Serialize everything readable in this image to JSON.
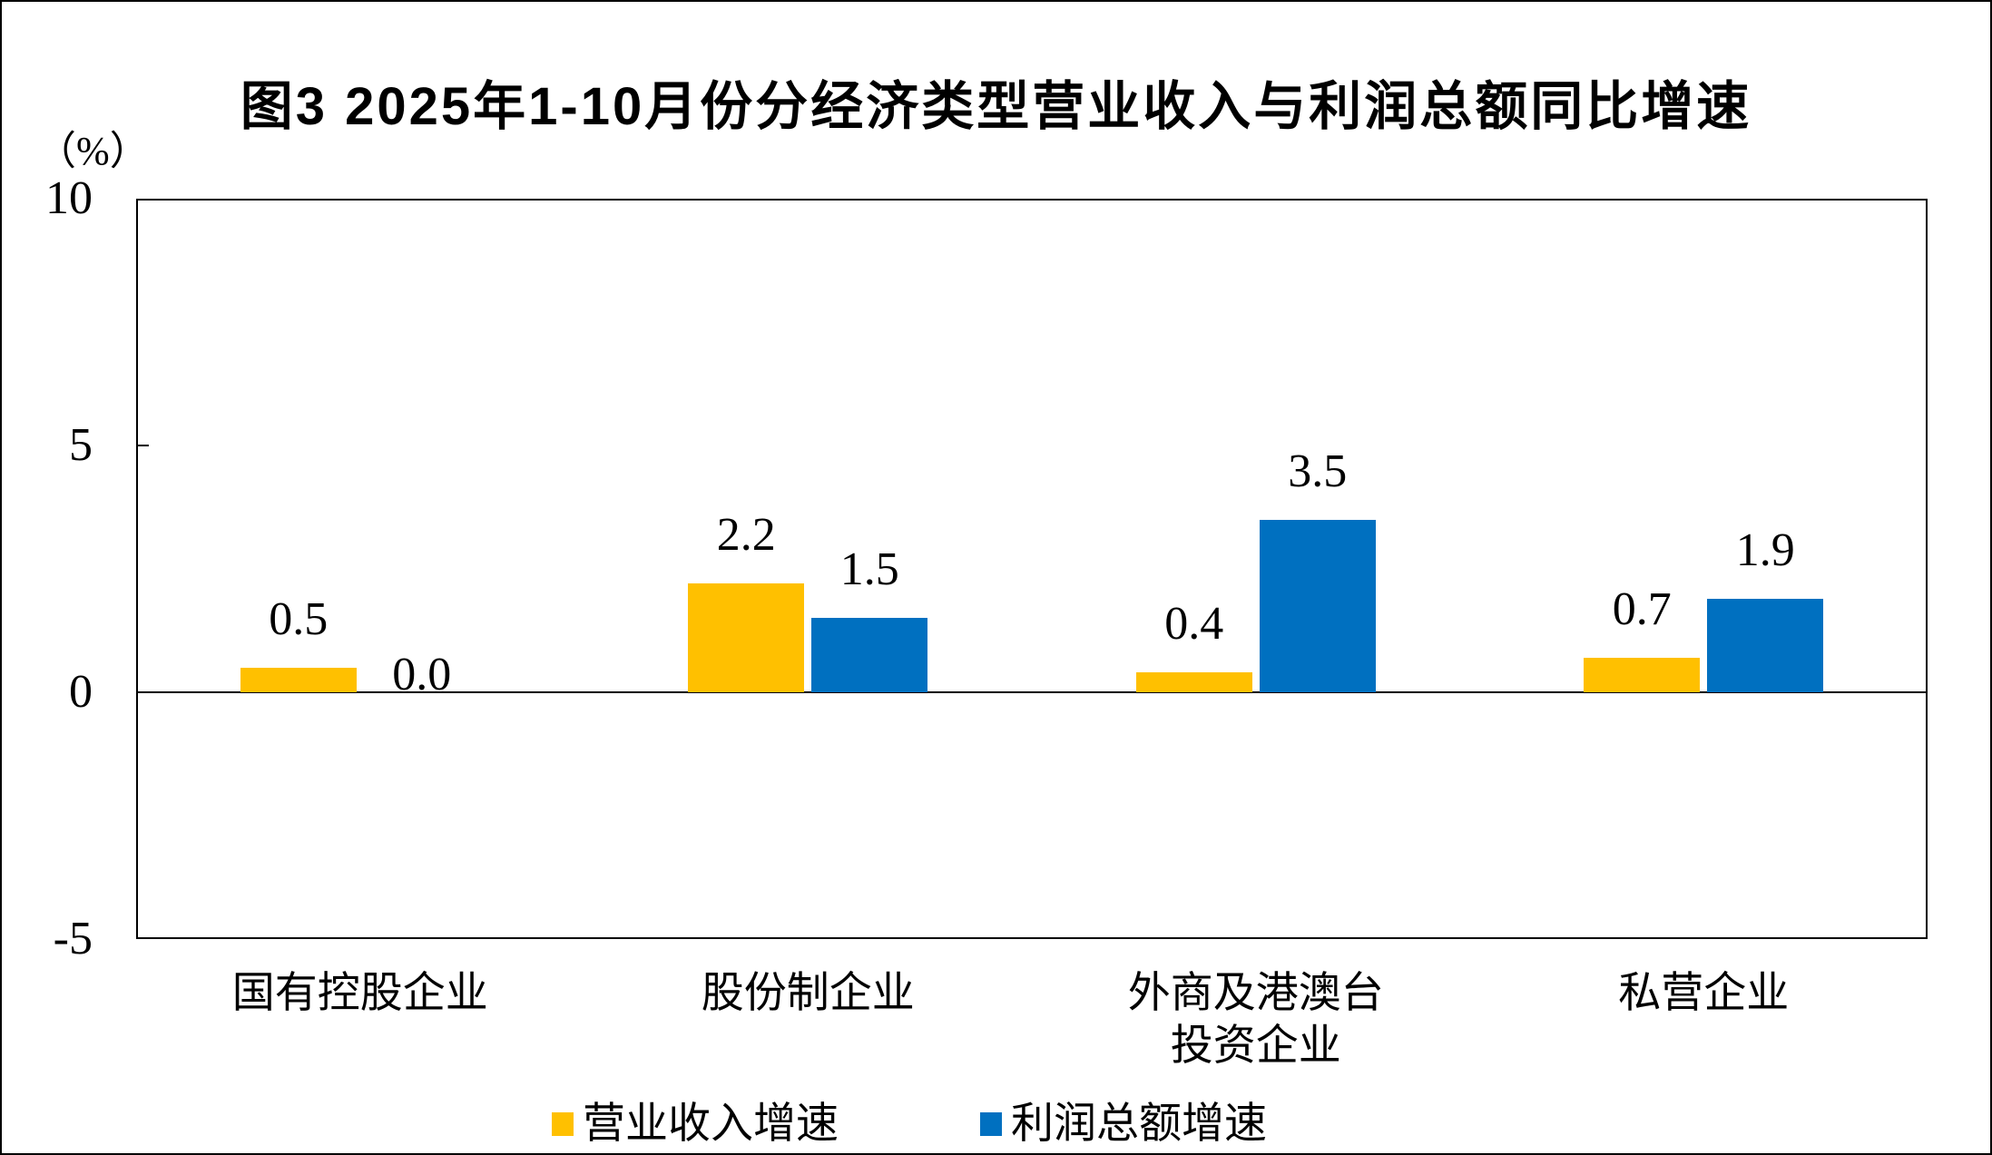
{
  "chart_data": {
    "type": "bar",
    "title": "图3 2025年1-10月份分经济类型营业收入与利润总额同比增速",
    "ylabel": "（%）",
    "xlabel": "",
    "ylim": [
      -5,
      10
    ],
    "yticks": [
      10,
      5,
      0,
      -5
    ],
    "grid": false,
    "legend_position": "bottom",
    "categories": [
      "国有控股企业",
      "股份制企业",
      "外商及港澳台\n投资企业",
      "私营企业"
    ],
    "series": [
      {
        "name": "营业收入增速",
        "color": "#FFC000",
        "values": [
          0.5,
          2.2,
          0.4,
          0.7
        ],
        "value_labels": [
          "0.5",
          "2.2",
          "0.4",
          "0.7"
        ]
      },
      {
        "name": "利润总额增速",
        "color": "#0070C0",
        "values": [
          0.0,
          1.5,
          3.5,
          1.9
        ],
        "value_labels": [
          "0.0",
          "1.5",
          "3.5",
          "1.9"
        ]
      }
    ]
  }
}
